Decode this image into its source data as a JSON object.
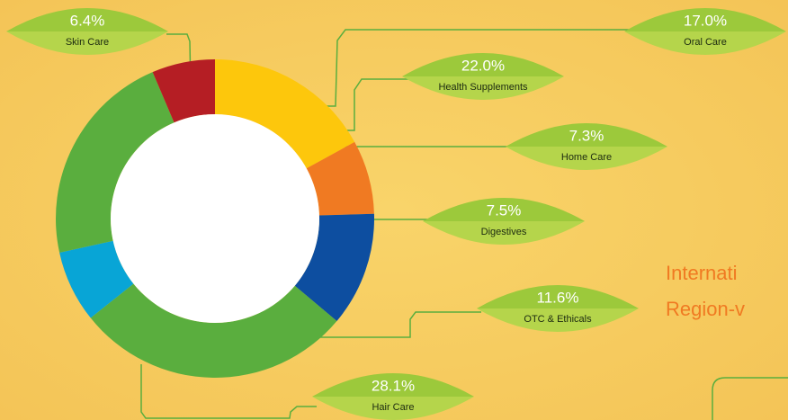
{
  "chart_data": {
    "type": "donut",
    "categories": [
      "Oral Care",
      "Digestives",
      "OTC & Ethicals",
      "Hair Care",
      "Home Care",
      "Health Supplements",
      "Skin Care"
    ],
    "values": [
      17.0,
      7.5,
      11.6,
      28.1,
      7.3,
      22.0,
      6.4
    ],
    "value_labels": [
      "17.0%",
      "7.5%",
      "11.6%",
      "28.1%",
      "7.3%",
      "22.0%",
      "6.4%"
    ],
    "colors": [
      "#fdc70c",
      "#f07a22",
      "#0d4ea0",
      "#5aae3e",
      "#08a5d6",
      "#5aae3e",
      "#b51e24"
    ],
    "annotations": [
      "Internati",
      "Region-v"
    ]
  }
}
